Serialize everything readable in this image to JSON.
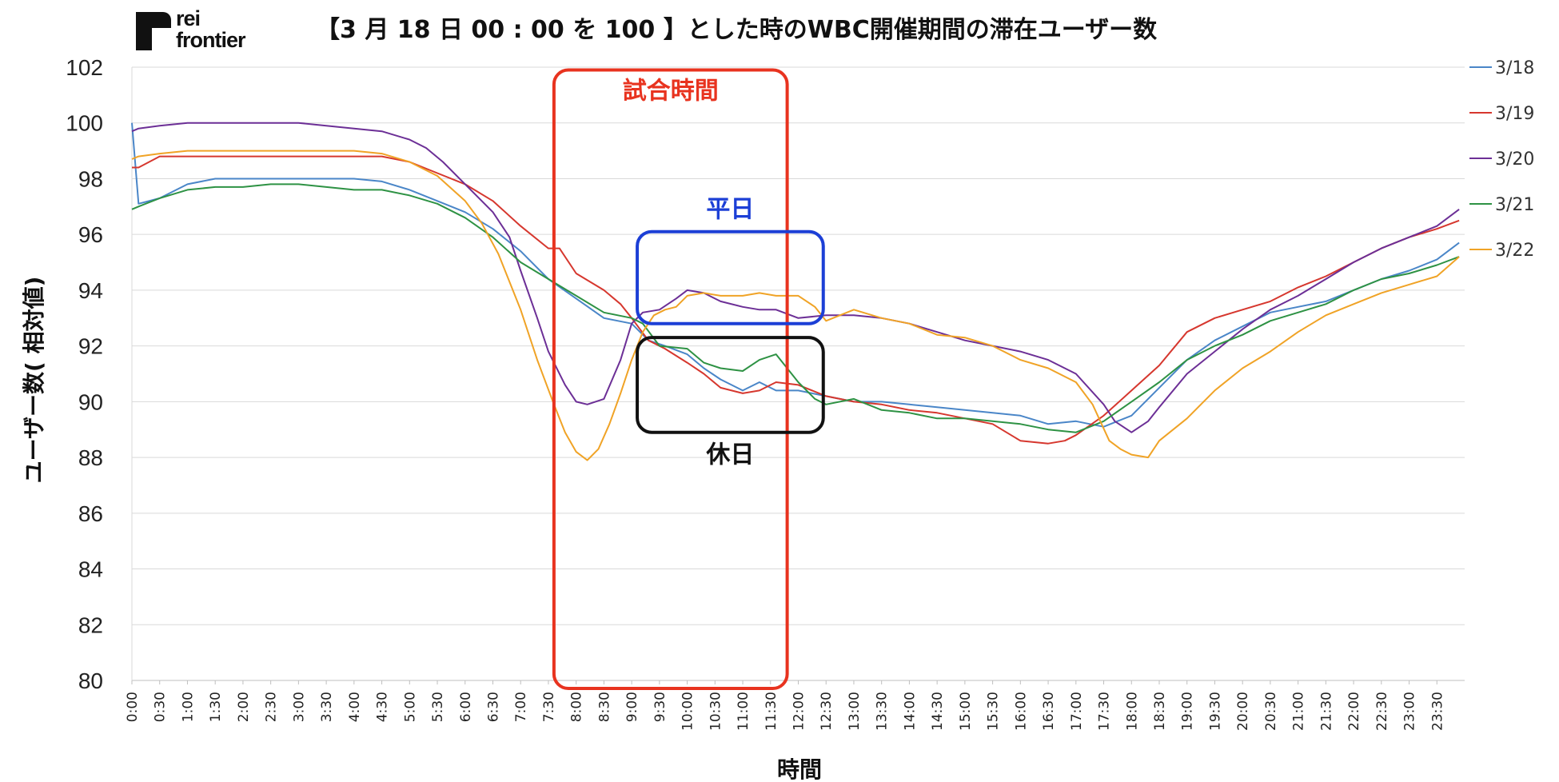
{
  "logo": {
    "line1": "rei",
    "line2": "frontier"
  },
  "chart_data": {
    "type": "line",
    "title": "【3 月 18 日 00 : 00 を 100 】とした時のWBC開催期間の滞在ユーザー数",
    "xlabel": "時間",
    "ylabel": "ユーザー数( 相対値)",
    "ylim": [
      80,
      102
    ],
    "yticks": [
      80,
      82,
      84,
      86,
      88,
      90,
      92,
      94,
      96,
      98,
      100,
      102
    ],
    "x_tick_labels": [
      "0:00",
      "0:30",
      "1:00",
      "1:30",
      "2:00",
      "2:30",
      "3:00",
      "3:30",
      "4:00",
      "4:30",
      "5:00",
      "5:30",
      "6:00",
      "6:30",
      "7:00",
      "7:30",
      "8:00",
      "8:30",
      "9:00",
      "9:30",
      "10:00",
      "10:30",
      "11:00",
      "11:30",
      "12:00",
      "12:30",
      "13:00",
      "13:30",
      "14:00",
      "14:30",
      "15:00",
      "15:30",
      "16:00",
      "16:30",
      "17:00",
      "17:30",
      "18:00",
      "18:30",
      "19:00",
      "19:30",
      "20:00",
      "20:30",
      "21:00",
      "21:30",
      "22:00",
      "22:30",
      "23:00",
      "23:30"
    ],
    "x_unit": "hours",
    "x_range": [
      0,
      24
    ],
    "grid": "horizontal",
    "legend_position": "right",
    "series": [
      {
        "name": "3/18",
        "color": "#4a86c8",
        "points": [
          [
            0,
            100
          ],
          [
            0.12,
            97.1
          ],
          [
            0.5,
            97.3
          ],
          [
            1,
            97.8
          ],
          [
            1.5,
            98
          ],
          [
            2,
            98
          ],
          [
            2.5,
            98
          ],
          [
            3,
            98
          ],
          [
            3.5,
            98
          ],
          [
            4,
            98
          ],
          [
            4.5,
            97.9
          ],
          [
            5,
            97.6
          ],
          [
            5.5,
            97.2
          ],
          [
            6,
            96.8
          ],
          [
            6.5,
            96.2
          ],
          [
            7,
            95.4
          ],
          [
            7.5,
            94.4
          ],
          [
            8,
            93.7
          ],
          [
            8.5,
            93
          ],
          [
            9,
            92.8
          ],
          [
            9.3,
            92.2
          ],
          [
            9.6,
            92
          ],
          [
            10,
            91.7
          ],
          [
            10.3,
            91.2
          ],
          [
            10.6,
            90.8
          ],
          [
            11,
            90.4
          ],
          [
            11.3,
            90.7
          ],
          [
            11.6,
            90.4
          ],
          [
            12,
            90.4
          ],
          [
            12.5,
            90.2
          ],
          [
            13,
            90
          ],
          [
            13.5,
            90
          ],
          [
            14,
            89.9
          ],
          [
            14.5,
            89.8
          ],
          [
            15,
            89.7
          ],
          [
            15.5,
            89.6
          ],
          [
            16,
            89.5
          ],
          [
            16.5,
            89.2
          ],
          [
            17,
            89.3
          ],
          [
            17.25,
            89.2
          ],
          [
            17.5,
            89.1
          ],
          [
            18,
            89.5
          ],
          [
            18.5,
            90.5
          ],
          [
            19,
            91.5
          ],
          [
            19.5,
            92.2
          ],
          [
            20,
            92.7
          ],
          [
            20.5,
            93.2
          ],
          [
            21,
            93.4
          ],
          [
            21.5,
            93.6
          ],
          [
            22,
            94
          ],
          [
            22.5,
            94.4
          ],
          [
            23,
            94.7
          ],
          [
            23.5,
            95.1
          ],
          [
            23.9,
            95.7
          ]
        ]
      },
      {
        "name": "3/19",
        "color": "#d6372e",
        "points": [
          [
            0,
            98.4
          ],
          [
            0.12,
            98.4
          ],
          [
            0.5,
            98.8
          ],
          [
            1,
            98.8
          ],
          [
            1.5,
            98.8
          ],
          [
            2,
            98.8
          ],
          [
            2.5,
            98.8
          ],
          [
            3,
            98.8
          ],
          [
            3.5,
            98.8
          ],
          [
            4,
            98.8
          ],
          [
            4.5,
            98.8
          ],
          [
            5,
            98.6
          ],
          [
            5.5,
            98.2
          ],
          [
            6,
            97.8
          ],
          [
            6.5,
            97.2
          ],
          [
            7,
            96.3
          ],
          [
            7.5,
            95.5
          ],
          [
            7.7,
            95.5
          ],
          [
            8,
            94.6
          ],
          [
            8.5,
            94
          ],
          [
            8.8,
            93.5
          ],
          [
            9,
            93
          ],
          [
            9.3,
            92.2
          ],
          [
            9.6,
            91.9
          ],
          [
            10,
            91.4
          ],
          [
            10.3,
            91
          ],
          [
            10.6,
            90.5
          ],
          [
            11,
            90.3
          ],
          [
            11.3,
            90.4
          ],
          [
            11.6,
            90.7
          ],
          [
            12,
            90.6
          ],
          [
            12.5,
            90.2
          ],
          [
            13,
            90
          ],
          [
            13.5,
            89.9
          ],
          [
            14,
            89.7
          ],
          [
            14.5,
            89.6
          ],
          [
            15,
            89.4
          ],
          [
            15.5,
            89.2
          ],
          [
            16,
            88.6
          ],
          [
            16.5,
            88.5
          ],
          [
            16.8,
            88.6
          ],
          [
            17,
            88.8
          ],
          [
            17.5,
            89.5
          ],
          [
            18,
            90.4
          ],
          [
            18.5,
            91.3
          ],
          [
            19,
            92.5
          ],
          [
            19.5,
            93
          ],
          [
            20,
            93.3
          ],
          [
            20.5,
            93.6
          ],
          [
            21,
            94.1
          ],
          [
            21.5,
            94.5
          ],
          [
            22,
            95
          ],
          [
            22.5,
            95.5
          ],
          [
            23,
            95.9
          ],
          [
            23.5,
            96.2
          ],
          [
            23.9,
            96.5
          ]
        ]
      },
      {
        "name": "3/20",
        "color": "#6c2f96",
        "points": [
          [
            0,
            99.7
          ],
          [
            0.12,
            99.8
          ],
          [
            0.5,
            99.9
          ],
          [
            1,
            100
          ],
          [
            1.5,
            100
          ],
          [
            2,
            100
          ],
          [
            2.5,
            100
          ],
          [
            3,
            100
          ],
          [
            3.5,
            99.9
          ],
          [
            4,
            99.8
          ],
          [
            4.5,
            99.7
          ],
          [
            5,
            99.4
          ],
          [
            5.3,
            99.1
          ],
          [
            5.6,
            98.6
          ],
          [
            6,
            97.8
          ],
          [
            6.5,
            96.8
          ],
          [
            6.8,
            95.9
          ],
          [
            7,
            94.7
          ],
          [
            7.3,
            93
          ],
          [
            7.5,
            91.8
          ],
          [
            7.8,
            90.6
          ],
          [
            8,
            90
          ],
          [
            8.2,
            89.9
          ],
          [
            8.5,
            90.1
          ],
          [
            8.8,
            91.5
          ],
          [
            9,
            92.8
          ],
          [
            9.2,
            93.2
          ],
          [
            9.5,
            93.3
          ],
          [
            9.8,
            93.7
          ],
          [
            10,
            94
          ],
          [
            10.3,
            93.9
          ],
          [
            10.6,
            93.6
          ],
          [
            11,
            93.4
          ],
          [
            11.3,
            93.3
          ],
          [
            11.6,
            93.3
          ],
          [
            12,
            93
          ],
          [
            12.5,
            93.1
          ],
          [
            13,
            93.1
          ],
          [
            13.5,
            93
          ],
          [
            14,
            92.8
          ],
          [
            14.5,
            92.5
          ],
          [
            15,
            92.2
          ],
          [
            15.5,
            92
          ],
          [
            16,
            91.8
          ],
          [
            16.5,
            91.5
          ],
          [
            17,
            91
          ],
          [
            17.5,
            89.9
          ],
          [
            17.7,
            89.3
          ],
          [
            18,
            88.9
          ],
          [
            18.3,
            89.3
          ],
          [
            18.5,
            89.8
          ],
          [
            19,
            91
          ],
          [
            19.5,
            91.8
          ],
          [
            20,
            92.6
          ],
          [
            20.5,
            93.3
          ],
          [
            21,
            93.8
          ],
          [
            21.5,
            94.4
          ],
          [
            22,
            95
          ],
          [
            22.5,
            95.5
          ],
          [
            23,
            95.9
          ],
          [
            23.5,
            96.3
          ],
          [
            23.9,
            96.9
          ]
        ]
      },
      {
        "name": "3/21",
        "color": "#2e9244",
        "points": [
          [
            0,
            96.9
          ],
          [
            0.12,
            97
          ],
          [
            0.5,
            97.3
          ],
          [
            1,
            97.6
          ],
          [
            1.5,
            97.7
          ],
          [
            2,
            97.7
          ],
          [
            2.5,
            97.8
          ],
          [
            3,
            97.8
          ],
          [
            3.5,
            97.7
          ],
          [
            4,
            97.6
          ],
          [
            4.5,
            97.6
          ],
          [
            5,
            97.4
          ],
          [
            5.5,
            97.1
          ],
          [
            6,
            96.6
          ],
          [
            6.5,
            95.9
          ],
          [
            7,
            95
          ],
          [
            7.5,
            94.4
          ],
          [
            8,
            93.8
          ],
          [
            8.5,
            93.2
          ],
          [
            9,
            93
          ],
          [
            9.2,
            92.8
          ],
          [
            9.5,
            92
          ],
          [
            10,
            91.9
          ],
          [
            10.3,
            91.4
          ],
          [
            10.6,
            91.2
          ],
          [
            11,
            91.1
          ],
          [
            11.3,
            91.5
          ],
          [
            11.6,
            91.7
          ],
          [
            12,
            90.7
          ],
          [
            12.3,
            90.1
          ],
          [
            12.5,
            89.9
          ],
          [
            13,
            90.1
          ],
          [
            13.5,
            89.7
          ],
          [
            14,
            89.6
          ],
          [
            14.5,
            89.4
          ],
          [
            15,
            89.4
          ],
          [
            15.5,
            89.3
          ],
          [
            16,
            89.2
          ],
          [
            16.5,
            89
          ],
          [
            17,
            88.9
          ],
          [
            17.5,
            89.3
          ],
          [
            18,
            90
          ],
          [
            18.5,
            90.7
          ],
          [
            19,
            91.5
          ],
          [
            19.5,
            92
          ],
          [
            20,
            92.4
          ],
          [
            20.5,
            92.9
          ],
          [
            21,
            93.2
          ],
          [
            21.5,
            93.5
          ],
          [
            22,
            94
          ],
          [
            22.5,
            94.4
          ],
          [
            23,
            94.6
          ],
          [
            23.5,
            94.9
          ],
          [
            23.9,
            95.2
          ]
        ]
      },
      {
        "name": "3/22",
        "color": "#f0a326",
        "points": [
          [
            0,
            98.7
          ],
          [
            0.12,
            98.8
          ],
          [
            0.5,
            98.9
          ],
          [
            1,
            99
          ],
          [
            1.5,
            99
          ],
          [
            2,
            99
          ],
          [
            2.5,
            99
          ],
          [
            3,
            99
          ],
          [
            3.5,
            99
          ],
          [
            4,
            99
          ],
          [
            4.5,
            98.9
          ],
          [
            5,
            98.6
          ],
          [
            5.5,
            98.1
          ],
          [
            6,
            97.2
          ],
          [
            6.3,
            96.4
          ],
          [
            6.6,
            95.3
          ],
          [
            7,
            93.3
          ],
          [
            7.3,
            91.5
          ],
          [
            7.6,
            89.9
          ],
          [
            7.8,
            88.9
          ],
          [
            8,
            88.2
          ],
          [
            8.2,
            87.9
          ],
          [
            8.4,
            88.3
          ],
          [
            8.6,
            89.2
          ],
          [
            8.8,
            90.3
          ],
          [
            9,
            91.5
          ],
          [
            9.2,
            92.5
          ],
          [
            9.4,
            93.1
          ],
          [
            9.6,
            93.3
          ],
          [
            9.8,
            93.4
          ],
          [
            10,
            93.8
          ],
          [
            10.3,
            93.9
          ],
          [
            10.6,
            93.8
          ],
          [
            11,
            93.8
          ],
          [
            11.3,
            93.9
          ],
          [
            11.6,
            93.8
          ],
          [
            12,
            93.8
          ],
          [
            12.3,
            93.4
          ],
          [
            12.5,
            92.9
          ],
          [
            13,
            93.3
          ],
          [
            13.5,
            93
          ],
          [
            14,
            92.8
          ],
          [
            14.5,
            92.4
          ],
          [
            15,
            92.3
          ],
          [
            15.5,
            92
          ],
          [
            16,
            91.5
          ],
          [
            16.5,
            91.2
          ],
          [
            17,
            90.7
          ],
          [
            17.3,
            89.9
          ],
          [
            17.6,
            88.6
          ],
          [
            17.8,
            88.3
          ],
          [
            18,
            88.1
          ],
          [
            18.3,
            88
          ],
          [
            18.5,
            88.6
          ],
          [
            19,
            89.4
          ],
          [
            19.5,
            90.4
          ],
          [
            20,
            91.2
          ],
          [
            20.5,
            91.8
          ],
          [
            21,
            92.5
          ],
          [
            21.5,
            93.1
          ],
          [
            22,
            93.5
          ],
          [
            22.5,
            93.9
          ],
          [
            23,
            94.2
          ],
          [
            23.5,
            94.5
          ],
          [
            23.9,
            95.2
          ]
        ]
      }
    ],
    "annotations": [
      {
        "label": "試合時間",
        "color": "#e8331f",
        "x_range": [
          7.6,
          11.8
        ],
        "y_range": [
          80,
          101.9
        ]
      },
      {
        "label": "平日",
        "color": "#1c3fd6",
        "x_range": [
          9.1,
          12.45
        ],
        "y_range": [
          92.8,
          96.1
        ]
      },
      {
        "label": "休日",
        "color": "#111111",
        "x_range": [
          9.1,
          12.45
        ],
        "y_range": [
          88.9,
          92.3
        ]
      }
    ]
  }
}
